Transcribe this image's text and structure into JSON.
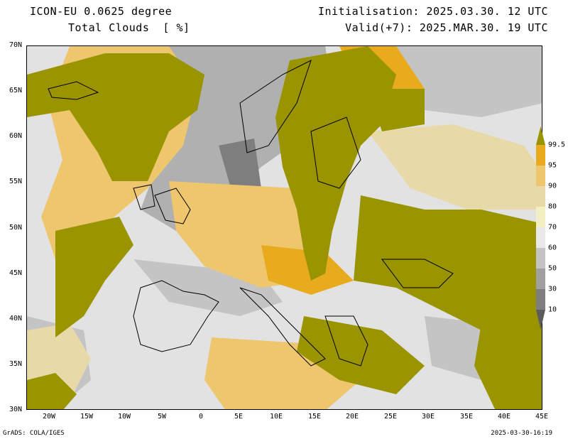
{
  "header": {
    "model": "ICON-EU 0.0625 degree",
    "variable": "Total Clouds  [ %]",
    "init": "Initialisation: 2025.03.30. 12 UTC",
    "valid": "Valid(+7): 2025.MAR.30. 19 UTC"
  },
  "axes": {
    "lat_labels": [
      "70N",
      "65N",
      "60N",
      "55N",
      "50N",
      "45N",
      "40N",
      "35N",
      "30N"
    ],
    "lon_labels": [
      "20W",
      "15W",
      "10W",
      "5W",
      "0",
      "5E",
      "10E",
      "15E",
      "20E",
      "25E",
      "30E",
      "35E",
      "40E",
      "45E"
    ]
  },
  "legend": {
    "labels": [
      "99.5",
      "95",
      "90",
      "80",
      "70",
      "60",
      "50",
      "30",
      "10"
    ],
    "colors": [
      "#9a9400",
      "#e8ab1e",
      "#eec66e",
      "#e8d9a8",
      "#f2efc2",
      "#e8e8e8",
      "#c4c4c4",
      "#a0a0a0",
      "#7e7e7e",
      "#5c5c5c"
    ]
  },
  "map_colors": {
    "overcast": "#9a9400",
    "heavy": "#e8ab1e",
    "moderate": "#eec66e",
    "light": "#e8d9a8",
    "clear": "#e2e2e2",
    "grey": "#b0b0b0",
    "darkgrey": "#7e7e7e"
  },
  "footer": {
    "left": "GrADS: COLA/IGES",
    "right": "2025-03-30-16:19"
  }
}
